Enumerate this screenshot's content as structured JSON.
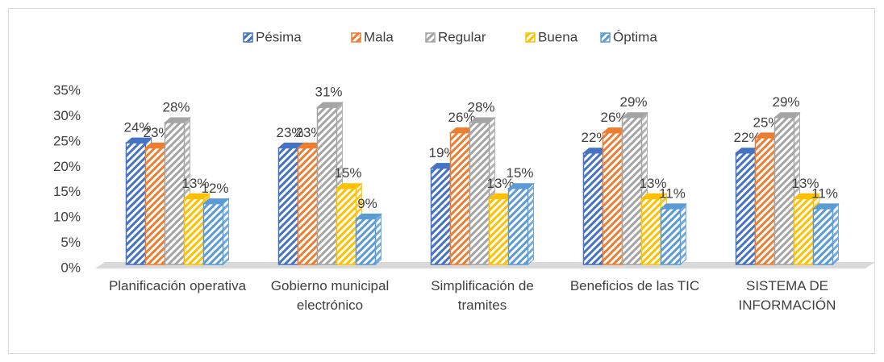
{
  "chart_data": {
    "type": "bar",
    "categories": [
      "Planificación operativa",
      "Gobierno municipal electrónico",
      "Simplificación de tramites",
      "Beneficios de las TIC",
      "SISTEMA DE INFORMACIÓN"
    ],
    "series": [
      {
        "name": "Pésima",
        "color": "#4472c4",
        "values": [
          24,
          23,
          19,
          22,
          22
        ],
        "value_labels": [
          "24%",
          "23%",
          "19%",
          "22%",
          "22%"
        ]
      },
      {
        "name": "Mala",
        "color": "#ed7d31",
        "values": [
          23,
          23,
          26,
          26,
          25
        ],
        "value_labels": [
          "23%",
          "23%",
          "26%",
          "26%",
          "25%"
        ]
      },
      {
        "name": "Regular",
        "color": "#a5a5a5",
        "values": [
          28,
          31,
          28,
          29,
          29
        ],
        "value_labels": [
          "28%",
          "31%",
          "28%",
          "29%",
          "29%"
        ]
      },
      {
        "name": "Buena",
        "color": "#ffc000",
        "values": [
          13,
          15,
          13,
          13,
          13
        ],
        "value_labels": [
          "13%",
          "15%",
          "13%",
          "13%",
          "13%"
        ]
      },
      {
        "name": "Óptima",
        "color": "#5b9bd5",
        "values": [
          12,
          9,
          15,
          11,
          11
        ],
        "value_labels": [
          "12%",
          "9%",
          "15%",
          "11%",
          "11%"
        ]
      }
    ],
    "ylim": [
      0,
      35
    ],
    "yticks": [
      {
        "value": 0,
        "label": "0%"
      },
      {
        "value": 5,
        "label": "5%"
      },
      {
        "value": 10,
        "label": "10%"
      },
      {
        "value": 15,
        "label": "15%"
      },
      {
        "value": 20,
        "label": "20%"
      },
      {
        "value": 25,
        "label": "25%"
      },
      {
        "value": 30,
        "label": "30%"
      },
      {
        "value": 35,
        "label": "35%"
      }
    ],
    "legend": "top",
    "grid": false
  }
}
